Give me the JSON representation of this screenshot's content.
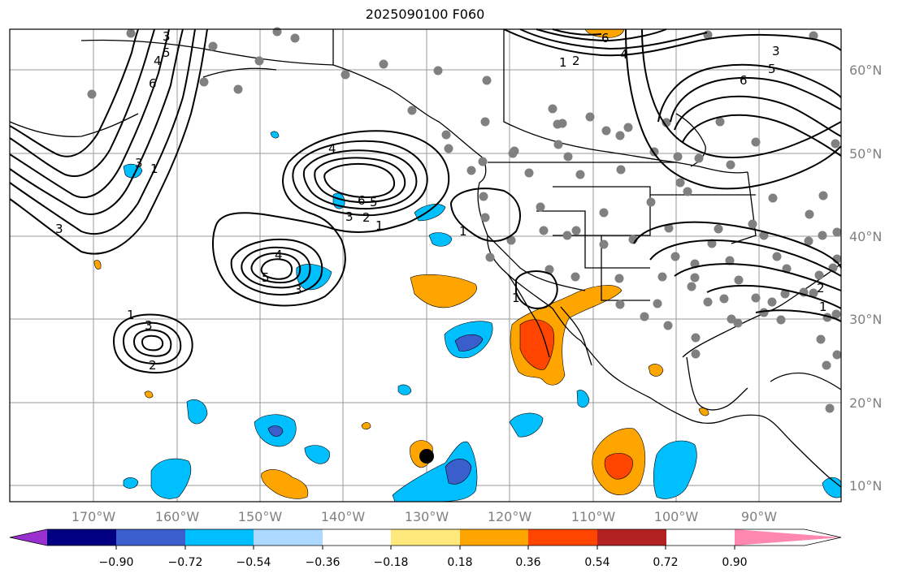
{
  "title": "2025090100 F060",
  "lon_labels": [
    "170°W",
    "160°W",
    "150°W",
    "140°W",
    "130°W",
    "120°W",
    "110°W",
    "100°W",
    "90°W"
  ],
  "lat_labels": [
    "60°N",
    "50°N",
    "40°N",
    "30°N",
    "20°N",
    "10°N"
  ],
  "colorbar": {
    "colors": [
      "#9b30d0",
      "#000080",
      "#3a5fcd",
      "#00bfff",
      "#add8ff",
      "#ffffff",
      "#ffe87c",
      "#ffa500",
      "#ff4500",
      "#b22222",
      "#ff88b0"
    ],
    "ticks": [
      "−0.90",
      "−0.72",
      "−0.54",
      "−0.36",
      "−0.18",
      "0.18",
      "0.36",
      "0.54",
      "0.72",
      "0.90"
    ]
  },
  "contour_labels": [
    "3",
    "5",
    "6",
    "4",
    "6",
    "5",
    "1",
    "3",
    "2",
    "3",
    "4",
    "6",
    "1",
    "4",
    "6",
    "5",
    "3",
    "2",
    "1",
    "4",
    "5",
    "3",
    "1",
    "3",
    "2",
    "1",
    "1",
    "2",
    "1",
    "3"
  ]
}
